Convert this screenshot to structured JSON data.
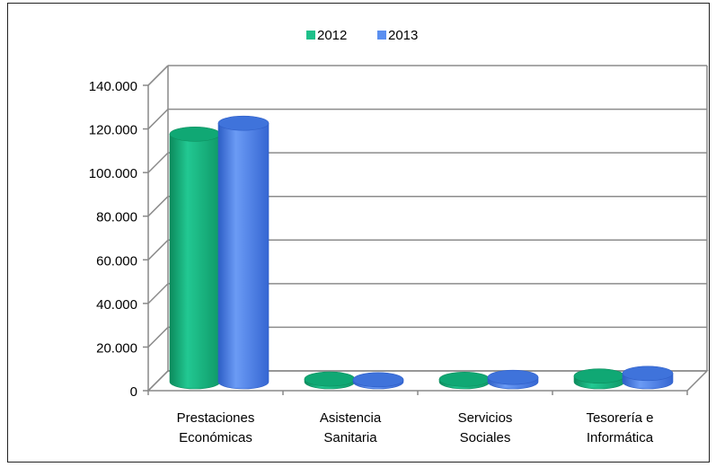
{
  "chart_data": {
    "type": "bar",
    "categories": [
      [
        "Prestaciones",
        "Económicas"
      ],
      [
        "Asistencia",
        "Sanitaria"
      ],
      [
        "Servicios",
        "Sociales"
      ],
      [
        "Tesorería e",
        "Informática"
      ]
    ],
    "series": [
      {
        "name": "2012",
        "values": [
          113500,
          1200,
          1100,
          2600
        ]
      },
      {
        "name": "2013",
        "values": [
          118500,
          900,
          2000,
          3800
        ]
      }
    ],
    "yticks": [
      "0",
      "20.000",
      "40.000",
      "60.000",
      "80.000",
      "100.000",
      "120.000",
      "140.000"
    ],
    "ylim": [
      0,
      140000
    ],
    "grid": true,
    "legend_position": "top-center",
    "colors": {
      "2012": {
        "front": "#1ec08a",
        "shade": "#0e8f5f",
        "top": "#10a874"
      },
      "2013": {
        "front": "#5b8ff0",
        "shade": "#2f5fc8",
        "top": "#3f73db"
      }
    }
  }
}
